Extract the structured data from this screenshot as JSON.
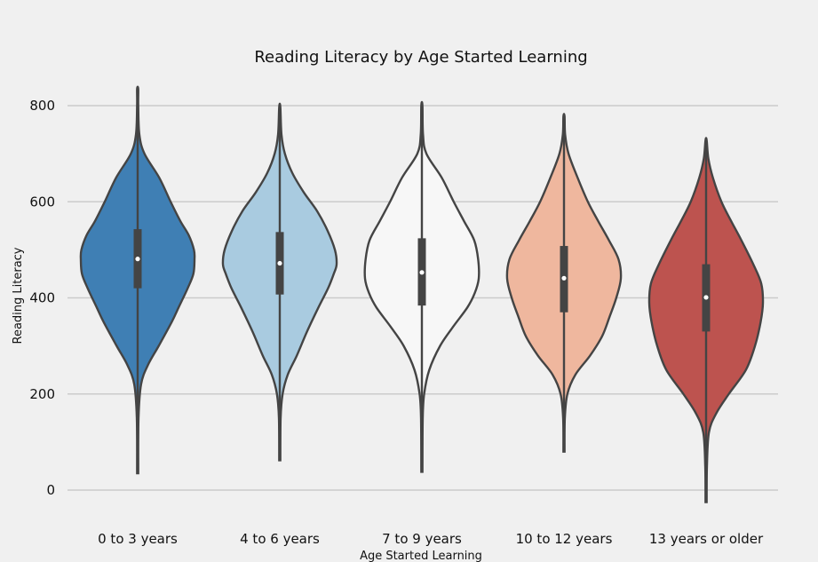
{
  "chart_data": {
    "type": "violin",
    "title": "Reading Literacy by Age Started Learning",
    "xlabel": "Age Started Learning",
    "ylabel": "Reading Literacy",
    "ylim": [
      -50,
      850
    ],
    "yticks": [
      0,
      200,
      400,
      600,
      800
    ],
    "grid": true,
    "categories": [
      "0 to 3 years",
      "4 to 6 years",
      "7 to 9 years",
      "10 to 12 years",
      "13 years or older"
    ],
    "colors": [
      "#3f7fb4",
      "#a9cbe0",
      "#f7f7f7",
      "#efb79e",
      "#bd534f"
    ],
    "summary": [
      {
        "min": 35,
        "q1": 420,
        "median": 481,
        "q3": 543,
        "max": 835
      },
      {
        "min": 62,
        "q1": 407,
        "median": 472,
        "q3": 537,
        "max": 797
      },
      {
        "min": 38,
        "q1": 384,
        "median": 453,
        "q3": 524,
        "max": 800
      },
      {
        "min": 80,
        "q1": 370,
        "median": 441,
        "q3": 508,
        "max": 778
      },
      {
        "min": -25,
        "q1": 330,
        "median": 401,
        "q3": 470,
        "max": 728
      }
    ],
    "density": [
      [
        [
          35,
          0.01
        ],
        [
          150,
          0.015
        ],
        [
          220,
          0.06
        ],
        [
          260,
          0.18
        ],
        [
          300,
          0.37
        ],
        [
          350,
          0.6
        ],
        [
          380,
          0.72
        ],
        [
          420,
          0.88
        ],
        [
          450,
          0.98
        ],
        [
          480,
          1.0
        ],
        [
          500,
          0.99
        ],
        [
          530,
          0.9
        ],
        [
          560,
          0.75
        ],
        [
          600,
          0.58
        ],
        [
          650,
          0.38
        ],
        [
          700,
          0.12
        ],
        [
          740,
          0.03
        ],
        [
          800,
          0.01
        ],
        [
          835,
          0.01
        ]
      ],
      [
        [
          62,
          0.01
        ],
        [
          150,
          0.015
        ],
        [
          200,
          0.05
        ],
        [
          240,
          0.14
        ],
        [
          280,
          0.3
        ],
        [
          330,
          0.48
        ],
        [
          380,
          0.68
        ],
        [
          420,
          0.85
        ],
        [
          450,
          0.95
        ],
        [
          470,
          1.0
        ],
        [
          500,
          0.97
        ],
        [
          540,
          0.84
        ],
        [
          580,
          0.66
        ],
        [
          620,
          0.42
        ],
        [
          660,
          0.22
        ],
        [
          700,
          0.09
        ],
        [
          740,
          0.03
        ],
        [
          797,
          0.01
        ]
      ],
      [
        [
          38,
          0.01
        ],
        [
          150,
          0.015
        ],
        [
          200,
          0.04
        ],
        [
          250,
          0.13
        ],
        [
          300,
          0.32
        ],
        [
          340,
          0.55
        ],
        [
          380,
          0.8
        ],
        [
          410,
          0.93
        ],
        [
          440,
          1.0
        ],
        [
          480,
          0.99
        ],
        [
          520,
          0.92
        ],
        [
          560,
          0.74
        ],
        [
          600,
          0.56
        ],
        [
          650,
          0.35
        ],
        [
          700,
          0.08
        ],
        [
          740,
          0.02
        ],
        [
          800,
          0.01
        ]
      ],
      [
        [
          80,
          0.01
        ],
        [
          150,
          0.015
        ],
        [
          200,
          0.06
        ],
        [
          240,
          0.2
        ],
        [
          280,
          0.46
        ],
        [
          320,
          0.67
        ],
        [
          360,
          0.8
        ],
        [
          400,
          0.92
        ],
        [
          440,
          1.0
        ],
        [
          480,
          0.96
        ],
        [
          520,
          0.79
        ],
        [
          560,
          0.6
        ],
        [
          600,
          0.42
        ],
        [
          650,
          0.24
        ],
        [
          700,
          0.08
        ],
        [
          740,
          0.02
        ],
        [
          778,
          0.01
        ]
      ],
      [
        [
          -25,
          0.01
        ],
        [
          50,
          0.015
        ],
        [
          120,
          0.05
        ],
        [
          160,
          0.18
        ],
        [
          200,
          0.4
        ],
        [
          250,
          0.7
        ],
        [
          300,
          0.86
        ],
        [
          350,
          0.96
        ],
        [
          390,
          1.0
        ],
        [
          430,
          0.97
        ],
        [
          470,
          0.83
        ],
        [
          520,
          0.62
        ],
        [
          560,
          0.44
        ],
        [
          600,
          0.27
        ],
        [
          650,
          0.12
        ],
        [
          690,
          0.04
        ],
        [
          728,
          0.01
        ]
      ]
    ]
  }
}
